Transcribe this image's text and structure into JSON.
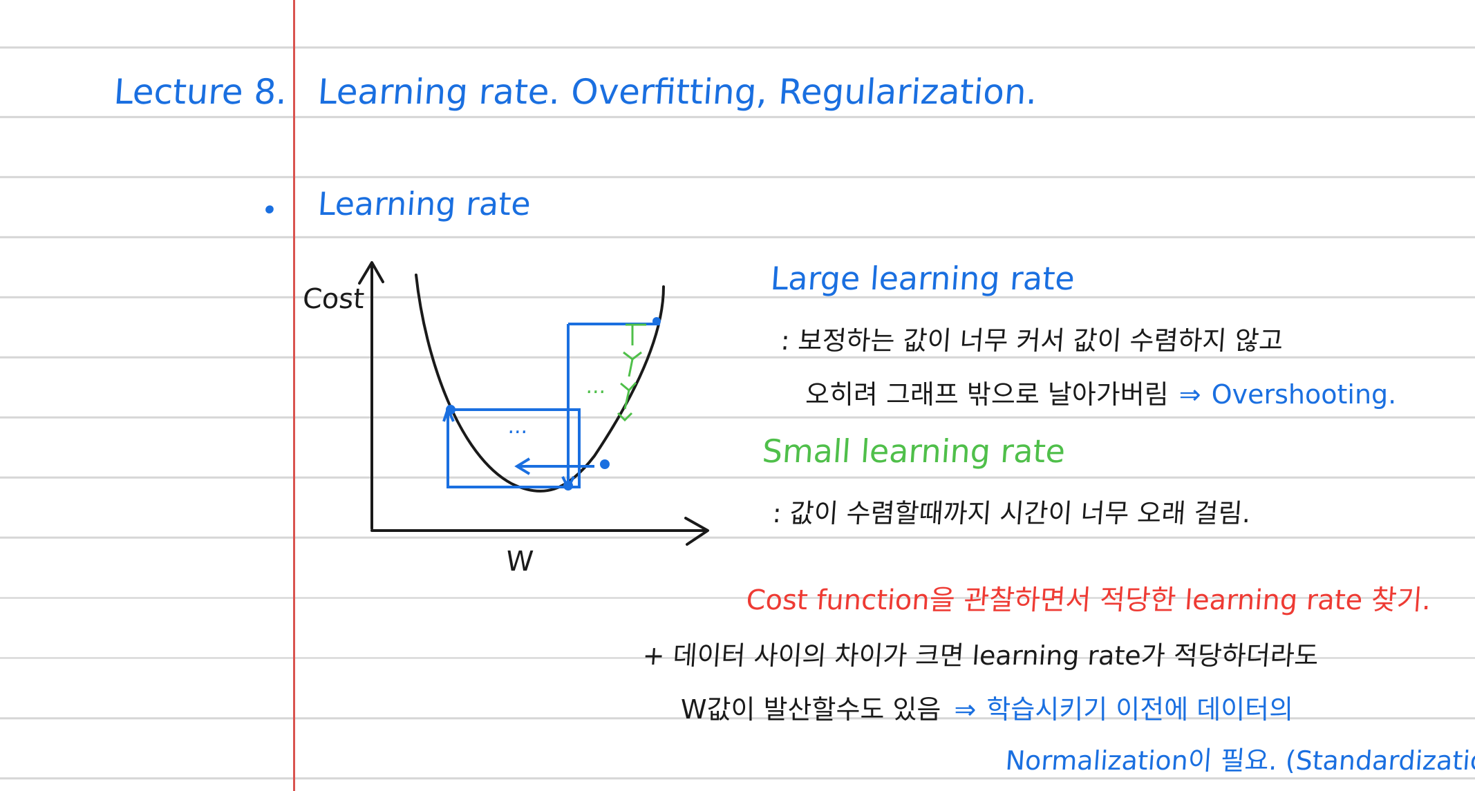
{
  "heading": {
    "lecture": "Lecture 8.",
    "title": "Learning rate. Overfitting, Regularization."
  },
  "section": {
    "bullet": "•",
    "title": "Learning rate"
  },
  "graph": {
    "y_label": "Cost",
    "x_label": "W",
    "ellipsis_small": "...",
    "ellipsis_large": "..."
  },
  "large_lr": {
    "title": "Large learning rate",
    "line1": ": 보정하는 값이 너무 커서 값이 수렴하지 않고",
    "line2_korean": "오히려 그래프 밖으로 날아가버림",
    "line2_arrow": "⇒",
    "line2_result": "Overshooting."
  },
  "small_lr": {
    "title": "Small learning rate",
    "line1": ": 값이 수렴할때까지 시간이 너무 오래 걸림."
  },
  "conclusion": "Cost function을 관찰하면서 적당한 learning rate 찾기.",
  "note": {
    "line1": "+ 데이터 사이의 차이가 크면 learning rate가 적당하더라도",
    "line2_korean": "W값이 발산할수도 있음",
    "line2_arrow": "⇒",
    "line2_result": "학습시키기 이전에 데이터의",
    "line3": "Normalization이 필요. (Standardization)"
  },
  "colors": {
    "ink_blue": "#1a6fe0",
    "ink_black": "#1a1a1a",
    "ink_green": "#4fbf4a",
    "ink_red": "#ee3b34",
    "margin_line": "#d9534f",
    "rule_line": "#d6d6d6"
  }
}
